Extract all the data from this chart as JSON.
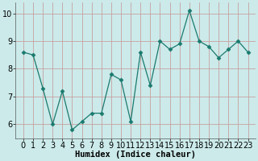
{
  "x": [
    0,
    1,
    2,
    3,
    4,
    5,
    6,
    7,
    8,
    9,
    10,
    11,
    12,
    13,
    14,
    15,
    16,
    17,
    18,
    19,
    20,
    21,
    22,
    23
  ],
  "y": [
    8.6,
    8.5,
    7.3,
    6.0,
    7.2,
    5.8,
    6.1,
    6.4,
    6.4,
    7.8,
    7.6,
    6.1,
    8.6,
    7.4,
    9.0,
    8.7,
    8.9,
    10.1,
    9.0,
    8.8,
    8.4,
    8.7,
    9.0,
    8.6
  ],
  "line_color": "#1a7a6e",
  "marker": "D",
  "marker_size": 2.5,
  "bg_color": "#cceaea",
  "grid_color": "#b8d8d8",
  "xlabel": "Humidex (Indice chaleur)",
  "xlabel_fontsize": 7.5,
  "tick_fontsize": 7,
  "ylim": [
    5.5,
    10.4
  ],
  "yticks": [
    6,
    7,
    8,
    9,
    10
  ],
  "xticks": [
    0,
    1,
    2,
    3,
    4,
    5,
    6,
    7,
    8,
    9,
    10,
    11,
    12,
    13,
    14,
    15,
    16,
    17,
    18,
    19,
    20,
    21,
    22,
    23
  ]
}
